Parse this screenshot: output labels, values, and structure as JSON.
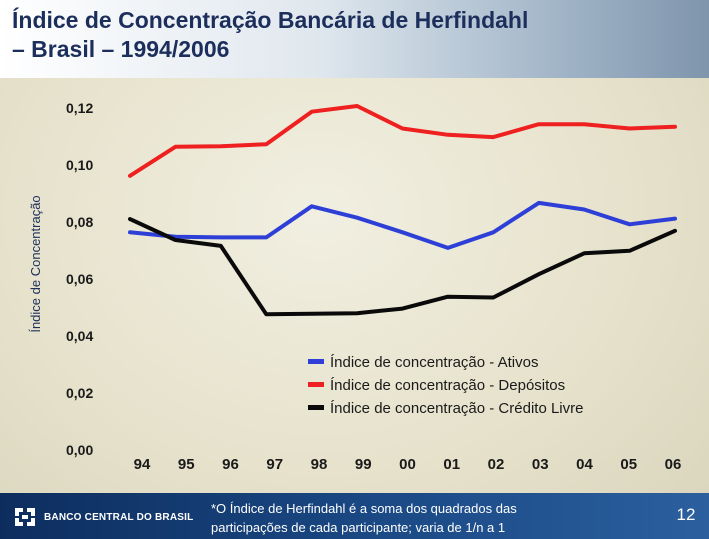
{
  "header": {
    "title": "Índice de Concentração Bancária de Herfindahl\n– Brasil – 1994/2006"
  },
  "footer": {
    "logo_text": "BANCO CENTRAL DO BRASIL",
    "footnote": "*O Índice de Herfindahl é a soma dos quadrados das\nparticipações de cada participante; varia de 1/n a 1",
    "page_number": "12",
    "band_color": "#14396e"
  },
  "chart_data": {
    "type": "line",
    "ylabel": "Índice de Concentração",
    "ylim": [
      0,
      0.12
    ],
    "yticks": [
      0.0,
      0.02,
      0.04,
      0.06,
      0.08,
      0.1,
      0.12
    ],
    "ytick_labels": [
      "0,00",
      "0,02",
      "0,04",
      "0,06",
      "0,08",
      "0,10",
      "0,12"
    ],
    "categories": [
      "94",
      "95",
      "96",
      "97",
      "98",
      "99",
      "00",
      "01",
      "02",
      "03",
      "04",
      "05",
      "06"
    ],
    "grid": false,
    "legend_position": "bottom-right",
    "series": [
      {
        "name": "Índice de concentração - Ativos",
        "color": "#2d3fd6",
        "values": [
          0.0764,
          0.0748,
          0.0746,
          0.0746,
          0.0855,
          0.0815,
          0.0764,
          0.0709,
          0.0764,
          0.0867,
          0.0844,
          0.0792,
          0.0812
        ]
      },
      {
        "name": "Índice de concentração - Depósitos",
        "color": "#ef2020",
        "values": [
          0.0962,
          0.1064,
          0.1066,
          0.1073,
          0.1187,
          0.1207,
          0.1128,
          0.1106,
          0.1098,
          0.1143,
          0.1143,
          0.1128,
          0.1134
        ]
      },
      {
        "name": "Índice de concentração - Crédito Livre",
        "color": "#0a0a0a",
        "values": [
          0.081,
          0.0737,
          0.0716,
          0.0476,
          0.0478,
          0.048,
          0.0496,
          0.0538,
          0.0535,
          0.0617,
          0.069,
          0.0699,
          0.0769
        ]
      }
    ]
  }
}
